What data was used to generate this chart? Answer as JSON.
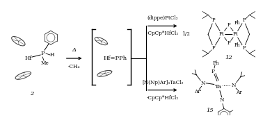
{
  "background_color": "#ffffff",
  "figsize": [
    3.78,
    1.67
  ],
  "dpi": 100,
  "text_color": "#000000",
  "bond_color": "#000000",
  "structure_color": "#3a3a3a",
  "arrow1_top": "Δ",
  "arrow1_bot": "-CH₄",
  "reaction_top1": "(dippe)PtCl₂",
  "reaction_top2": "-CpCp*HfCl₂",
  "reaction_bot1": "[N(Np)Ar]₃TaCl₂",
  "reaction_bot2": "-CpCp*HfCl₂",
  "label_2": "2",
  "label_12": "12",
  "label_15": "15",
  "label_half": "1/2",
  "label_hf_pph": "Hf=PPh",
  "label_hf": "Hf",
  "label_p": "P",
  "label_h": "H",
  "label_me": "Me",
  "label_pt": "Pt",
  "label_ta": "Ta",
  "label_n": "N",
  "label_ph": "Ph",
  "label_ar": "Ar",
  "label_ar_prime": "Ar'",
  "fs_tiny": 4.5,
  "fs_small": 5.2,
  "fs_med": 6.0,
  "fs_label": 6.5,
  "xlim": [
    0,
    378
  ],
  "ylim": [
    0,
    167
  ]
}
